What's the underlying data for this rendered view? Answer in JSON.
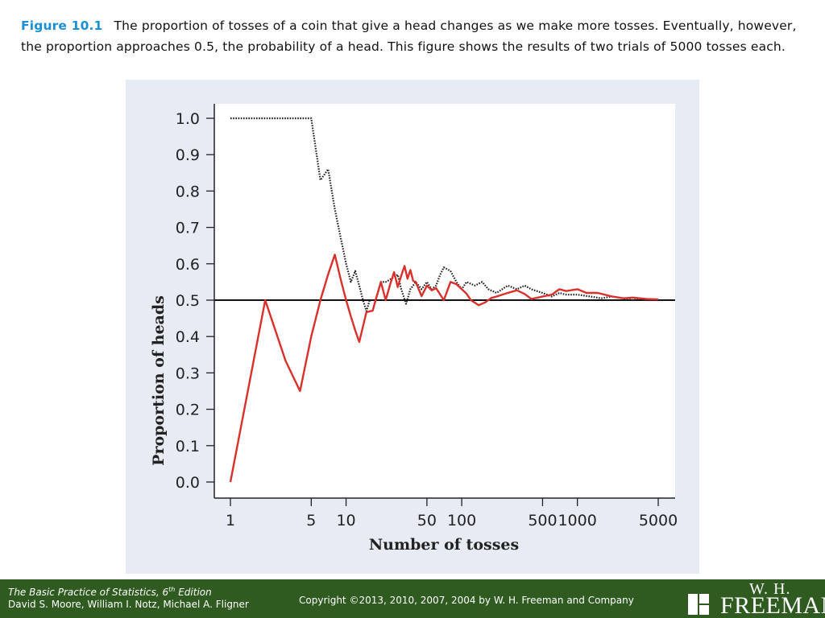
{
  "caption": {
    "figure_label": "Figure 10.1",
    "text": "The proportion of tosses of a coin that give a head changes as we make more tosses. Eventually, however, the proportion approaches 0.5, the probability of a head. This figure shows the results of two trials of 5000 tosses each."
  },
  "chart_data": {
    "type": "line",
    "xlabel": "Number of tosses",
    "ylabel": "Proportion of heads",
    "xscale": "log",
    "xlim": [
      1,
      5000
    ],
    "ylim": [
      0.0,
      1.0
    ],
    "x_ticks": [
      1,
      5,
      10,
      50,
      100,
      500,
      1000,
      5000
    ],
    "x_tick_labels": [
      "1",
      "5",
      "10",
      "50",
      "100",
      "500",
      "1000",
      "5000"
    ],
    "y_ticks": [
      0.0,
      0.1,
      0.2,
      0.3,
      0.4,
      0.5,
      0.6,
      0.7,
      0.8,
      0.9,
      1.0
    ],
    "y_tick_labels": [
      "0.0",
      "0.1",
      "0.2",
      "0.3",
      "0.4",
      "0.5",
      "0.6",
      "0.7",
      "0.8",
      "0.9",
      "1.0"
    ],
    "reference_line": 0.5,
    "grid": false,
    "series": [
      {
        "style": "dotted",
        "color": "#222222",
        "points": [
          [
            1,
            1.0
          ],
          [
            2,
            1.0
          ],
          [
            3,
            1.0
          ],
          [
            4,
            1.0
          ],
          [
            5,
            1.0
          ],
          [
            6,
            0.83
          ],
          [
            7,
            0.86
          ],
          [
            8,
            0.75
          ],
          [
            9,
            0.67
          ],
          [
            10,
            0.6
          ],
          [
            11,
            0.55
          ],
          [
            12,
            0.58
          ],
          [
            13,
            0.54
          ],
          [
            14,
            0.5
          ],
          [
            15,
            0.47
          ],
          [
            16,
            0.5
          ],
          [
            18,
            0.5
          ],
          [
            20,
            0.55
          ],
          [
            22,
            0.55
          ],
          [
            25,
            0.56
          ],
          [
            28,
            0.57
          ],
          [
            30,
            0.53
          ],
          [
            33,
            0.49
          ],
          [
            36,
            0.53
          ],
          [
            40,
            0.55
          ],
          [
            45,
            0.53
          ],
          [
            50,
            0.55
          ],
          [
            55,
            0.53
          ],
          [
            60,
            0.54
          ],
          [
            65,
            0.57
          ],
          [
            70,
            0.59
          ],
          [
            80,
            0.58
          ],
          [
            90,
            0.55
          ],
          [
            100,
            0.53
          ],
          [
            110,
            0.55
          ],
          [
            130,
            0.54
          ],
          [
            150,
            0.55
          ],
          [
            170,
            0.53
          ],
          [
            200,
            0.52
          ],
          [
            250,
            0.54
          ],
          [
            300,
            0.53
          ],
          [
            350,
            0.54
          ],
          [
            400,
            0.53
          ],
          [
            500,
            0.52
          ],
          [
            600,
            0.51
          ],
          [
            700,
            0.52
          ],
          [
            800,
            0.515
          ],
          [
            1000,
            0.515
          ],
          [
            1300,
            0.51
          ],
          [
            1600,
            0.505
          ],
          [
            2000,
            0.51
          ],
          [
            2500,
            0.505
          ],
          [
            3000,
            0.5
          ],
          [
            3500,
            0.503
          ],
          [
            4000,
            0.5
          ],
          [
            5000,
            0.5
          ]
        ]
      },
      {
        "style": "solid",
        "color": "#d9302b",
        "points": [
          [
            1,
            0.0
          ],
          [
            2,
            0.5
          ],
          [
            3,
            0.333
          ],
          [
            4,
            0.25
          ],
          [
            5,
            0.4
          ],
          [
            6,
            0.5
          ],
          [
            7,
            0.571
          ],
          [
            8,
            0.625
          ],
          [
            9,
            0.556
          ],
          [
            10,
            0.5
          ],
          [
            11,
            0.455
          ],
          [
            12,
            0.417
          ],
          [
            13,
            0.385
          ],
          [
            15,
            0.467
          ],
          [
            17,
            0.471
          ],
          [
            18,
            0.5
          ],
          [
            20,
            0.55
          ],
          [
            22,
            0.5
          ],
          [
            24,
            0.542
          ],
          [
            26,
            0.577
          ],
          [
            28,
            0.536
          ],
          [
            30,
            0.567
          ],
          [
            32,
            0.594
          ],
          [
            34,
            0.559
          ],
          [
            36,
            0.583
          ],
          [
            38,
            0.553
          ],
          [
            40,
            0.55
          ],
          [
            45,
            0.511
          ],
          [
            50,
            0.54
          ],
          [
            55,
            0.527
          ],
          [
            60,
            0.533
          ],
          [
            70,
            0.5
          ],
          [
            80,
            0.55
          ],
          [
            90,
            0.544
          ],
          [
            100,
            0.53
          ],
          [
            110,
            0.518
          ],
          [
            120,
            0.5
          ],
          [
            140,
            0.486
          ],
          [
            160,
            0.494
          ],
          [
            180,
            0.506
          ],
          [
            200,
            0.51
          ],
          [
            250,
            0.52
          ],
          [
            300,
            0.527
          ],
          [
            350,
            0.517
          ],
          [
            400,
            0.503
          ],
          [
            500,
            0.51
          ],
          [
            600,
            0.515
          ],
          [
            700,
            0.53
          ],
          [
            800,
            0.525
          ],
          [
            1000,
            0.53
          ],
          [
            1200,
            0.52
          ],
          [
            1500,
            0.52
          ],
          [
            2000,
            0.51
          ],
          [
            2500,
            0.505
          ],
          [
            3000,
            0.507
          ],
          [
            4000,
            0.503
          ],
          [
            5000,
            0.502
          ]
        ]
      }
    ]
  },
  "footer": {
    "book_title": "The Basic Practice of Statistics, 6",
    "book_title_sup": "th",
    "book_title_suffix": " Edition",
    "authors": "David S. Moore, William I. Notz, Michael A. Fligner",
    "copyright": "Copyright ©2013, 2010, 2007, 2004 by W. H. Freeman and Company",
    "logo_top": "W. H.",
    "logo_main": "FREEMAN"
  }
}
